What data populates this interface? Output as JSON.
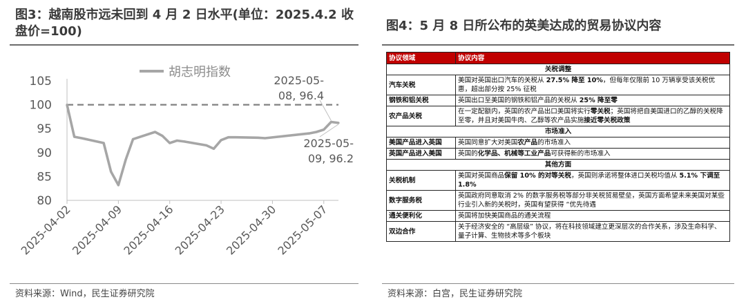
{
  "left": {
    "title": "图3：越南股市远未回到 4 月 2 日水平(单位：2025.4.2 收盘价=100)",
    "source": "资料来源：Wind，民生证券研究院"
  },
  "right": {
    "title": "图4：5 月 8 日所公布的英美达成的贸易协议内容",
    "source": "资料来源：白宫，民生证券研究院",
    "table": {
      "headers": [
        "协议领域",
        "协议内容"
      ],
      "sections": [
        {
          "name": "关税调整",
          "rows": [
            {
              "field": "汽车关税",
              "content": [
                {
                  "t": "美国对英国出口汽车的关税从 "
                },
                {
                  "t": "27.5% 降至 10%",
                  "b": true
                },
                {
                  "t": "，但每年仅限前 10 万辆享受该关税优惠，超出部分按 25% 征税"
                }
              ]
            },
            {
              "field": "钢铁和铝关税",
              "content": [
                {
                  "t": "英国出口至美国的钢铁和铝产品的关税从 "
                },
                {
                  "t": "25% 降至零",
                  "b": true
                }
              ]
            },
            {
              "field": "农产品关税",
              "content": [
                {
                  "t": "在一定配额内，英国的农产品出口美国将实行"
                },
                {
                  "t": "零关税",
                  "b": true
                },
                {
                  "t": "；英国将把自美国进口的乙醇的关税降至零，并且对美国牛肉、乙醇等农产品实施"
                },
                {
                  "t": "接近零关税政策",
                  "b": true
                }
              ]
            }
          ]
        },
        {
          "name": "市场准入",
          "rows": [
            {
              "field": "美国产品进入英国",
              "content": [
                {
                  "t": "英国同意扩大对美国"
                },
                {
                  "t": "农产品",
                  "b": true
                },
                {
                  "t": "的市场准入"
                }
              ]
            },
            {
              "field": "英国产品进入美国",
              "content": [
                {
                  "t": "英国的"
                },
                {
                  "t": "化学品、机械等工业产品",
                  "b": true
                },
                {
                  "t": "可获得新的市场准入"
                }
              ]
            }
          ]
        },
        {
          "name": "其他方面",
          "rows": [
            {
              "field": "关税机制",
              "content": [
                {
                  "t": "美国对英国商品"
                },
                {
                  "t": "保留 10% 的对等关税",
                  "b": true
                },
                {
                  "t": "，英国则承诺将整体进口关税均值从 "
                },
                {
                  "t": "5.1% 下调至 1.8%",
                  "b": true
                }
              ]
            },
            {
              "field": "数字服务税",
              "content": [
                {
                  "t": "英国政府同意取消 2% 的数字服务税等部分非关税贸易壁垒，英国方面希望未来美国对某些行业引入新的关税时，英国有望获得 “优先待遇"
                }
              ]
            },
            {
              "field": "通关便利化",
              "content": [
                {
                  "t": "英国将加快美国商品的通关流程"
                }
              ]
            },
            {
              "field": "双边合作",
              "content": [
                {
                  "t": "关于经济安全的 “高层级” 协议，将在科技领域建立更深层次的合作关系，涉及生命科学、量子计算、生物技术等多个板块"
                }
              ]
            }
          ]
        }
      ]
    }
  },
  "chart_data": {
    "type": "line",
    "title": "",
    "xlabel": "",
    "ylabel": "",
    "ylim": [
      80,
      105
    ],
    "yticks": [
      "80",
      "85",
      "90",
      "95",
      "100",
      "105"
    ],
    "xticks": [
      "2025-04-02",
      "2025-04-09",
      "2025-04-16",
      "2025-04-23",
      "2025-04-30",
      "2025-05-07"
    ],
    "grid": false,
    "legend": "top-left",
    "reference_line": {
      "y": 100,
      "style": "dashed"
    },
    "series": [
      {
        "name": "胡志明指数",
        "color": "#a6a6a6",
        "x": [
          "2025-04-02",
          "2025-04-03",
          "2025-04-04",
          "2025-04-07",
          "2025-04-08",
          "2025-04-09",
          "2025-04-10",
          "2025-04-11",
          "2025-04-14",
          "2025-04-15",
          "2025-04-16",
          "2025-04-17",
          "2025-04-18",
          "2025-04-21",
          "2025-04-22",
          "2025-04-23",
          "2025-04-24",
          "2025-04-25",
          "2025-04-28",
          "2025-04-29",
          "2025-05-05",
          "2025-05-06",
          "2025-05-07",
          "2025-05-08",
          "2025-05-09"
        ],
        "values": [
          100,
          93.3,
          93.0,
          92.0,
          86.0,
          83.2,
          88.5,
          92.8,
          94.3,
          93.5,
          92.0,
          92.5,
          92.3,
          91.5,
          90.8,
          92.6,
          93.2,
          93.2,
          93.1,
          93.0,
          94.0,
          94.3,
          94.8,
          96.4,
          96.2
        ]
      }
    ],
    "annotations": [
      {
        "text": "2025-05-08, 96.4",
        "x": "2025-05-08",
        "y": 96.4
      },
      {
        "text": "2025-05-09, 96.2",
        "x": "2025-05-09",
        "y": 96.2
      }
    ]
  }
}
